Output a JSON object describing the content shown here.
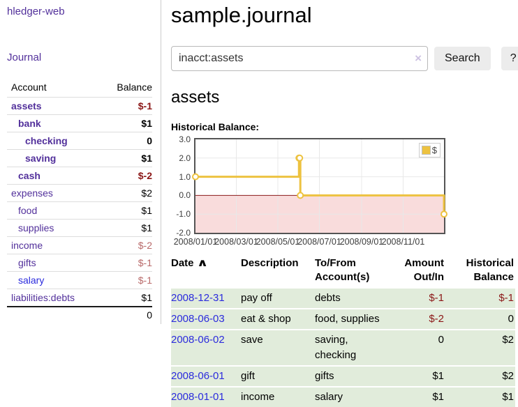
{
  "sidebar": {
    "brand": "hledger-web",
    "journal_link": "Journal",
    "accounts_table": {
      "col_account": "Account",
      "col_balance": "Balance",
      "rows": [
        {
          "name": "assets",
          "balance": "$-1"
        },
        {
          "name": "bank",
          "balance": "$1"
        },
        {
          "name": "checking",
          "balance": "0"
        },
        {
          "name": "saving",
          "balance": "$1"
        },
        {
          "name": "cash",
          "balance": "$-2"
        },
        {
          "name": "expenses",
          "balance": "$2"
        },
        {
          "name": "food",
          "balance": "$1"
        },
        {
          "name": "supplies",
          "balance": "$1"
        },
        {
          "name": "income",
          "balance": "$-2"
        },
        {
          "name": "gifts",
          "balance": "$-1"
        },
        {
          "name": "salary",
          "balance": "$-1"
        },
        {
          "name": "liabilities:debts",
          "balance": "$1"
        }
      ],
      "total": "0"
    }
  },
  "header": {
    "title": "sample.journal"
  },
  "search": {
    "value": "inacct:assets",
    "clear_icon": "×",
    "button_label": "Search",
    "help_label": "?"
  },
  "account_page": {
    "heading": "assets",
    "chart_title": "Historical Balance:"
  },
  "chart_data": {
    "type": "line",
    "title": "Historical Balance",
    "ylim": [
      -2,
      3
    ],
    "xlim_days": [
      0,
      365
    ],
    "yticks": [
      "3.0",
      "2.0",
      "1.0",
      "0.0",
      "-1.0",
      "-2.0"
    ],
    "xticks": [
      {
        "label": "2008/01/01",
        "day": 0
      },
      {
        "label": "2008/03/01",
        "day": 60
      },
      {
        "label": "2008/05/01",
        "day": 121
      },
      {
        "label": "2008/07/01",
        "day": 182
      },
      {
        "label": "2008/09/01",
        "day": 244
      },
      {
        "label": "2008/11/01",
        "day": 305
      }
    ],
    "grid": true,
    "grid_color": "#e8e8e8",
    "negative_fill": "#f9dcdc",
    "zero_line_color": "#8b1a1a",
    "legend": {
      "label": "$",
      "position": "top-right",
      "swatch_color": "#edc240"
    },
    "series": [
      {
        "name": "$",
        "color": "#edc240",
        "style": "steps",
        "points": [
          {
            "date": "2008-01-01",
            "day": 0,
            "value": 1
          },
          {
            "date": "2008-06-01",
            "day": 152,
            "value": 2
          },
          {
            "date": "2008-06-02",
            "day": 153,
            "value": 2
          },
          {
            "date": "2008-06-03",
            "day": 154,
            "value": 0
          },
          {
            "date": "2008-12-31",
            "day": 365,
            "value": -1
          }
        ]
      }
    ]
  },
  "register": {
    "columns": {
      "date": "Date",
      "sort_indicator": "∧",
      "description": "Description",
      "accounts": "To/From Account(s)",
      "amount": "Amount Out/In",
      "balance": "Historical Balance"
    },
    "rows": [
      {
        "date": "2008-12-31",
        "description": "pay off",
        "accounts": "debts",
        "amount": "$-1",
        "balance": "$-1"
      },
      {
        "date": "2008-06-03",
        "description": "eat & shop",
        "accounts": "food, supplies",
        "amount": "$-2",
        "balance": "0"
      },
      {
        "date": "2008-06-02",
        "description": "save",
        "accounts": "saving, checking",
        "amount": "0",
        "balance": "$2"
      },
      {
        "date": "2008-06-01",
        "description": "gift",
        "accounts": "gifts",
        "amount": "$1",
        "balance": "$2"
      },
      {
        "date": "2008-01-01",
        "description": "income",
        "accounts": "salary",
        "amount": "$1",
        "balance": "$1"
      }
    ]
  }
}
